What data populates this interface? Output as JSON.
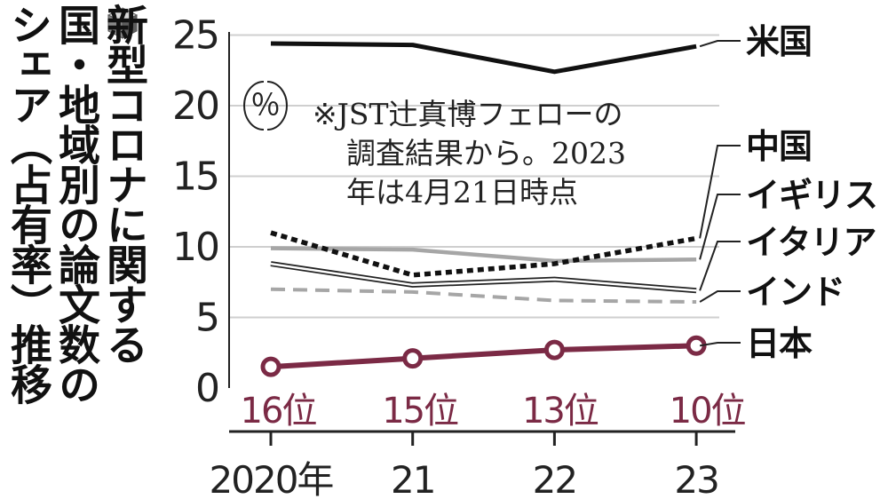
{
  "title_lines": [
    "新型コロナに関する",
    "国・地域別の論文数の",
    "シェア（占有率）推移"
  ],
  "unit_label": "％",
  "note_lines": [
    "※JST辻真博フェローの",
    "調査結果から。2023",
    "年は4月21日時点"
  ],
  "colors": {
    "usa": "#111111",
    "china": "#111111",
    "uk": "#a6a6a6",
    "italy": "#222222",
    "india": "#a6a6a6",
    "japan": "#7b2a45",
    "grid": "#cfcfcf",
    "axis": "#222222"
  },
  "chart_data": {
    "type": "line",
    "x": [
      "2020年",
      "21",
      "22",
      "23"
    ],
    "ylim": [
      0,
      25
    ],
    "yticks": [
      0,
      5,
      10,
      15,
      20,
      25
    ],
    "grid": true,
    "series": [
      {
        "name": "米国",
        "values": [
          24.4,
          24.3,
          22.4,
          24.2
        ],
        "style": "solid-thick"
      },
      {
        "name": "中国",
        "values": [
          11.0,
          8.0,
          8.8,
          10.6
        ],
        "style": "dotted-thick"
      },
      {
        "name": "イギリス",
        "values": [
          9.9,
          9.8,
          9.0,
          9.1
        ],
        "style": "solid-gray"
      },
      {
        "name": "イタリア",
        "values": [
          8.8,
          7.3,
          7.7,
          6.9
        ],
        "style": "outlined"
      },
      {
        "name": "インド",
        "values": [
          7.0,
          6.8,
          6.2,
          6.1
        ],
        "style": "dashed-gray"
      },
      {
        "name": "日本",
        "values": [
          1.5,
          2.1,
          2.7,
          3.0
        ],
        "style": "solid-markers",
        "rank_labels": [
          "16位",
          "15位",
          "13位",
          "10位"
        ]
      }
    ]
  }
}
